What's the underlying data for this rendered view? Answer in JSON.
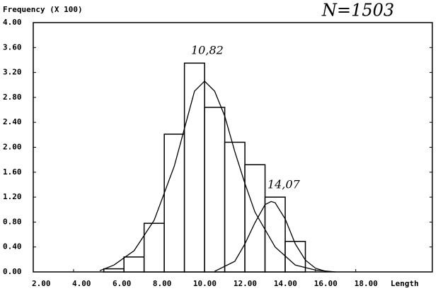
{
  "chart_data": {
    "type": "histogram",
    "y_axis_label": "Frequency (X 100)",
    "x_axis_label": "Length",
    "annotations": [
      "N=1503",
      "10,82",
      "14,07"
    ],
    "bins": [
      5.5,
      6.5,
      7.5,
      8.5,
      9.5,
      10.5,
      11.5,
      12.5,
      13.5,
      14.5,
      15.5
    ],
    "values": [
      0.05,
      0.24,
      0.78,
      2.21,
      3.35,
      2.64,
      2.08,
      1.72,
      1.2,
      0.49
    ],
    "curves": [
      {
        "x": [
          5.3,
          6,
          7,
          8,
          9,
          9.5,
          10,
          10.5,
          11,
          11.5,
          12,
          12.5,
          13,
          14,
          15,
          16,
          17
        ],
        "values": [
          0.02,
          0.11,
          0.34,
          0.83,
          1.7,
          2.3,
          2.9,
          3.06,
          2.9,
          2.5,
          1.93,
          1.42,
          0.96,
          0.4,
          0.11,
          0.03,
          0
        ]
      },
      {
        "x": [
          11,
          12,
          12.5,
          13,
          13.5,
          13.8,
          14,
          14.5,
          15,
          15.5,
          16,
          16.5
        ],
        "values": [
          0.01,
          0.17,
          0.45,
          0.79,
          1.08,
          1.13,
          1.11,
          0.85,
          0.45,
          0.19,
          0.06,
          0.01
        ]
      }
    ],
    "color": "#000000",
    "xlim": [
      2,
      21.8
    ],
    "ylim": [
      0,
      4
    ],
    "xticks": [
      {
        "value": 2,
        "label": "2.00"
      },
      {
        "value": 4,
        "label": "4.00"
      },
      {
        "value": 6,
        "label": "6.00"
      },
      {
        "value": 8,
        "label": "8.00"
      },
      {
        "value": 10,
        "label": "10.00"
      },
      {
        "value": 12,
        "label": "12.00"
      },
      {
        "value": 14,
        "label": "14.00"
      },
      {
        "value": 16,
        "label": "16.00"
      },
      {
        "value": 18,
        "label": "18.00"
      }
    ],
    "yticks": [
      {
        "value": 0,
        "label": "0.00"
      },
      {
        "value": 0.4,
        "label": "0.40"
      },
      {
        "value": 0.8,
        "label": "0.80"
      },
      {
        "value": 1.2,
        "label": "1.20"
      },
      {
        "value": 1.6,
        "label": "1.60"
      },
      {
        "value": 2,
        "label": "2.00"
      },
      {
        "value": 2.4,
        "label": "2.40"
      },
      {
        "value": 2.8,
        "label": "2.80"
      },
      {
        "value": 3.2,
        "label": "3.20"
      },
      {
        "value": 3.6,
        "label": "3.60"
      },
      {
        "value": 4,
        "label": "4.00"
      }
    ]
  }
}
